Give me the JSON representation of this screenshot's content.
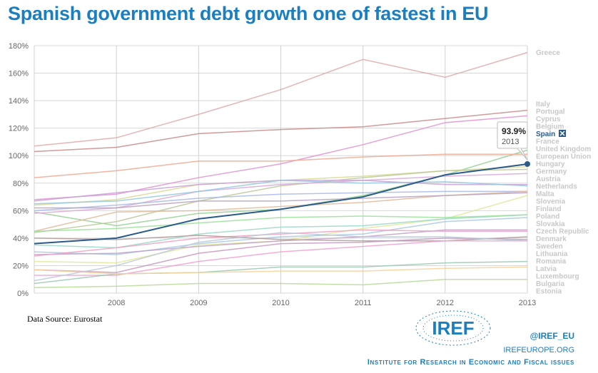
{
  "title": "Spanish government debt growth one of fastest in EU",
  "source": "Data Source: Eurostat",
  "footer": {
    "handle": "@IREF_EU",
    "site": "IREFEUROPE.ORG",
    "institute": "Institute for Research in Economic and Fiscal issues",
    "logo_text": "IREF"
  },
  "tooltip": {
    "value": "93.9%",
    "year": "2013"
  },
  "colors": {
    "title": "#1a7fc1",
    "highlight": "#2a5a8a",
    "legend_text": "#c8c8c8"
  },
  "chart_data": {
    "type": "line",
    "x": [
      2007,
      2008,
      2009,
      2010,
      2011,
      2012,
      2013
    ],
    "x_tick_labels": [
      "2008",
      "2009",
      "2010",
      "2011",
      "2012",
      "2013"
    ],
    "ylim": [
      0,
      180
    ],
    "y_tick_labels": [
      "0%",
      "20%",
      "40%",
      "60%",
      "80%",
      "100%",
      "120%",
      "140%",
      "160%",
      "180%"
    ],
    "grid": true,
    "legend_placement": "right",
    "highlighted": "Spain",
    "series": [
      {
        "name": "Greece",
        "color": "#e0a8a8",
        "values": [
          107,
          113,
          130,
          148,
          170,
          157,
          175
        ]
      },
      {
        "name": "Italy",
        "color": "#c88a8a",
        "values": [
          103,
          106,
          116,
          119,
          121,
          127,
          133
        ]
      },
      {
        "name": "Portugal",
        "color": "#e090d0",
        "values": [
          68,
          72,
          84,
          94,
          108,
          124,
          129
        ]
      },
      {
        "name": "Cyprus",
        "color": "#90d090",
        "values": [
          59,
          49,
          58,
          61,
          71,
          86,
          104
        ]
      },
      {
        "name": "Belgium",
        "color": "#f0a890",
        "values": [
          84,
          89,
          96,
          96,
          99,
          101,
          101
        ]
      },
      {
        "name": "Spain",
        "color": "#2a5a8a",
        "values": [
          36,
          40,
          54,
          61,
          70,
          86,
          93.9
        ]
      },
      {
        "name": "France",
        "color": "#d8d890",
        "values": [
          64,
          68,
          79,
          82,
          85,
          89,
          92
        ]
      },
      {
        "name": "United Kingdom",
        "color": "#b8c898",
        "values": [
          44,
          52,
          67,
          78,
          84,
          89,
          90
        ]
      },
      {
        "name": "European Union",
        "color": "#d8a8d8",
        "values": [
          58,
          62,
          74,
          79,
          82,
          85,
          87
        ]
      },
      {
        "name": "Hungary",
        "color": "#c8a0d8",
        "values": [
          67,
          73,
          79,
          82,
          82,
          79,
          79
        ]
      },
      {
        "name": "Germany",
        "color": "#90c8e0",
        "values": [
          65,
          67,
          74,
          82,
          80,
          81,
          78
        ]
      },
      {
        "name": "Austria",
        "color": "#a8b8e8",
        "values": [
          60,
          64,
          69,
          72,
          73,
          74,
          74
        ]
      },
      {
        "name": "Netherlands",
        "color": "#e0b898",
        "values": [
          45,
          59,
          60,
          63,
          66,
          71,
          74
        ]
      },
      {
        "name": "Malta",
        "color": "#b8a0c0",
        "values": [
          62,
          62,
          67,
          67,
          69,
          71,
          73
        ]
      },
      {
        "name": "Slovenia",
        "color": "#e0e898",
        "values": [
          23,
          22,
          35,
          38,
          47,
          54,
          71
        ]
      },
      {
        "name": "Finland",
        "color": "#98d8c8",
        "values": [
          35,
          33,
          43,
          48,
          49,
          54,
          57
        ]
      },
      {
        "name": "Poland",
        "color": "#98e098",
        "values": [
          45,
          47,
          51,
          55,
          56,
          55,
          57
        ]
      },
      {
        "name": "Slovakia",
        "color": "#a8c8e0",
        "values": [
          30,
          28,
          36,
          41,
          43,
          52,
          55
        ]
      },
      {
        "name": "Czech Republic",
        "color": "#c0a0c8",
        "values": [
          28,
          29,
          34,
          38,
          41,
          46,
          46
        ]
      },
      {
        "name": "Denmark",
        "color": "#f0a0c0",
        "values": [
          27,
          33,
          40,
          43,
          46,
          45,
          45
        ]
      },
      {
        "name": "Sweden",
        "color": "#b09898",
        "values": [
          40,
          39,
          42,
          39,
          38,
          38,
          41
        ]
      },
      {
        "name": "Lithuania",
        "color": "#c898c0",
        "values": [
          17,
          15,
          29,
          36,
          37,
          40,
          39
        ]
      },
      {
        "name": "Romania",
        "color": "#f0a0d0",
        "values": [
          13,
          13,
          23,
          30,
          34,
          38,
          38
        ]
      },
      {
        "name": "Latvia",
        "color": "#b8c8d8",
        "values": [
          9,
          20,
          37,
          44,
          41,
          41,
          38
        ]
      },
      {
        "name": "Luxembourg",
        "color": "#98c8b0",
        "values": [
          7,
          14,
          15,
          19,
          19,
          22,
          23
        ]
      },
      {
        "name": "Bulgaria",
        "color": "#f8d098",
        "values": [
          17,
          14,
          15,
          16,
          16,
          18,
          19
        ]
      },
      {
        "name": "Estonia",
        "color": "#b8d898",
        "values": [
          4,
          5,
          7,
          7,
          6,
          10,
          10
        ]
      }
    ]
  }
}
